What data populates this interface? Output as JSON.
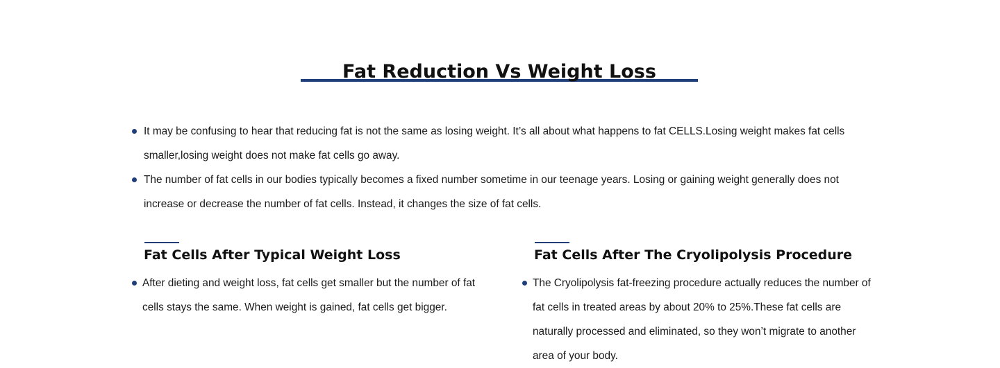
{
  "main": {
    "title": "Fat Reduction Vs Weight Loss",
    "bullets": [
      "It may be confusing to hear that reducing fat is not the same as losing weight. It’s all about what happens to fat CELLS.Losing weight makes fat cells smaller,losing weight does not make fat cells go away.",
      "The number of fat cells in our bodies typically becomes a fixed number sometime in our teenage years. Losing or gaining weight generally does not increase or decrease the number of fat cells. Instead, it changes the size of fat cells."
    ]
  },
  "columns": {
    "left": {
      "title": "Fat Cells After Typical Weight Loss",
      "text": "After dieting and weight loss, fat cells get smaller but the number of fat cells stays the same. When weight is gained, fat cells get bigger."
    },
    "right": {
      "title": "Fat Cells After The Cryolipolysis Procedure",
      "text": "The Cryolipolysis fat-freezing procedure actually reduces the number of fat cells in treated areas by about 20% to 25%.These fat cells are naturally processed and eliminated, so they won’t migrate to another area of your body."
    }
  },
  "colors": {
    "accent": "#1f3f7a",
    "text": "#111111",
    "background": "#ffffff"
  }
}
